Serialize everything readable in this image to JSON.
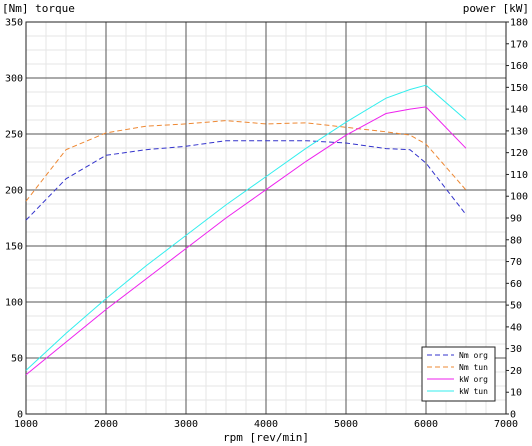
{
  "chart_data": {
    "type": "line",
    "left_axis_title": "[Nm] torque",
    "right_axis_title": "power [kW]",
    "xlabel": "rpm [rev/min]",
    "xlim": [
      1000,
      7000
    ],
    "ylim_left": [
      0,
      350
    ],
    "ylim_right": [
      0,
      180
    ],
    "x_ticks": [
      "1000",
      "2000",
      "3000",
      "4000",
      "5000",
      "6000",
      "7000"
    ],
    "y_left_ticks": [
      "0",
      "50",
      "100",
      "150",
      "200",
      "250",
      "300",
      "350"
    ],
    "y_right_ticks": [
      "0",
      "10",
      "20",
      "30",
      "40",
      "50",
      "60",
      "70",
      "80",
      "90",
      "100",
      "110",
      "120",
      "130",
      "140",
      "150",
      "160",
      "170",
      "180"
    ],
    "grid": true,
    "minor_grid": true,
    "legend_position": "bottom-right",
    "series": [
      {
        "name": "Nm org",
        "axis": "left",
        "style": "dashed",
        "color": "#3333cc",
        "x": [
          1000,
          1500,
          2000,
          2500,
          3000,
          3500,
          4000,
          4500,
          5000,
          5500,
          5800,
          6000,
          6500
        ],
        "y": [
          173,
          210,
          231,
          236,
          239,
          244,
          244,
          244,
          242,
          237,
          236,
          224,
          178
        ]
      },
      {
        "name": "Nm tun",
        "axis": "left",
        "style": "dashed",
        "color": "#ee8833",
        "x": [
          1000,
          1500,
          2000,
          2500,
          3000,
          3500,
          4000,
          4500,
          5000,
          5500,
          5800,
          6000,
          6500
        ],
        "y": [
          190,
          236,
          251,
          257,
          259,
          262,
          259,
          260,
          256,
          252,
          249,
          241,
          200
        ]
      },
      {
        "name": "kW org",
        "axis": "right",
        "style": "solid",
        "color": "#ee22ee",
        "x": [
          1000,
          1500,
          2000,
          2500,
          3000,
          3500,
          4000,
          4500,
          5000,
          5500,
          5800,
          6000,
          6500
        ],
        "y": [
          18,
          33,
          48,
          62,
          76,
          90,
          103,
          116,
          128,
          138,
          140,
          141,
          122
        ]
      },
      {
        "name": "kW tun",
        "axis": "right",
        "style": "solid",
        "color": "#33eeee",
        "x": [
          1000,
          1500,
          2000,
          2500,
          3000,
          3500,
          4000,
          4500,
          5000,
          5500,
          5800,
          6000,
          6500
        ],
        "y": [
          20,
          37,
          53,
          68,
          82,
          96,
          109,
          122,
          134,
          145,
          149,
          151,
          135
        ]
      }
    ]
  }
}
